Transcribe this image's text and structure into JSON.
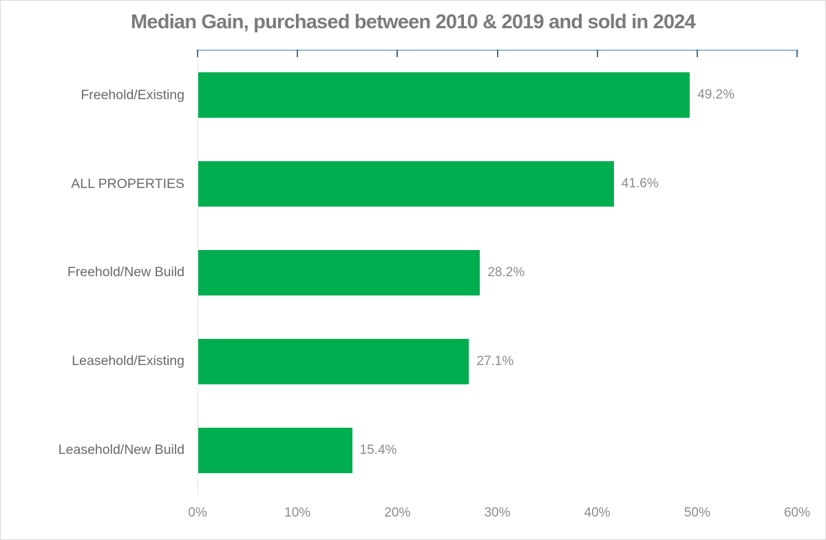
{
  "title": "Median Gain, purchased between 2010 & 2019 and sold in 2024",
  "chart_data": {
    "type": "bar",
    "orientation": "horizontal",
    "title": "Median Gain, purchased between 2010 & 2019 and sold in 2024",
    "categories": [
      "Freehold/Existing",
      "ALL PROPERTIES",
      "Freehold/New Build",
      "Leasehold/Existing",
      "Leasehold/New Build"
    ],
    "values": [
      49.2,
      41.6,
      28.2,
      27.1,
      15.4
    ],
    "value_labels": [
      "49.2%",
      "41.6%",
      "28.2%",
      "27.1%",
      "15.4%"
    ],
    "xlabel": "",
    "ylabel": "",
    "xlim": [
      0,
      60
    ],
    "x_tick_values": [
      0,
      10,
      20,
      30,
      40,
      50,
      60
    ],
    "x_tick_labels": [
      "0%",
      "10%",
      "20%",
      "30%",
      "40%",
      "50%",
      "60%"
    ],
    "grid": false,
    "legend": false,
    "axis_position": "top-ticks-bottom-labels",
    "colors": {
      "bar": "#00ad4f",
      "axis_line": "#9db9ce",
      "tick_mark": "#41719c",
      "title_text": "#7b7b7b",
      "category_text": "#696969",
      "value_text": "#8c8c8c"
    }
  }
}
